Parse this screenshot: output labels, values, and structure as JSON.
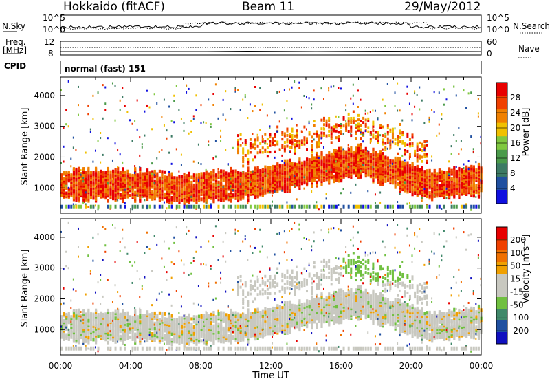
{
  "header": {
    "station": "Hokkaido (fitACF)",
    "beam": "Beam 11",
    "date": "29/May/2012"
  },
  "top_panels": {
    "nsky_label": "N.Sky",
    "nsky_ticks": [
      "10^5",
      "10^0"
    ],
    "nsearch_label": "N.Search",
    "nsearch_ticks": [
      "10^5",
      "10^0"
    ],
    "freq_label": "Freq.",
    "freq_unit": "[MHz]",
    "freq_ticks": [
      "12",
      "8"
    ],
    "nave_label": "Nave",
    "nave_ticks": [
      "60",
      "0"
    ],
    "cpid_label": "CPID",
    "cpid_value": "normal (fast) 151"
  },
  "colors": {
    "power_scale": [
      "#1010e0",
      "#2050a0",
      "#3c7a64",
      "#4a9a4a",
      "#80c840",
      "#f0c000",
      "#f08000",
      "#f04000",
      "#e80000"
    ],
    "velocity_scale": [
      "#1010c0",
      "#2050a0",
      "#40886a",
      "#70c040",
      "#c8c8c0",
      "#c8c8c0",
      "#f0a000",
      "#f07000",
      "#f04000",
      "#e80000"
    ]
  },
  "chart_data": [
    {
      "type": "heatmap",
      "name": "power",
      "ylabel": "Slant Range [km]",
      "yticks": [
        "4000",
        "3000",
        "2000",
        "1000"
      ],
      "ylim": [
        180,
        4600
      ],
      "xlim": [
        0,
        24
      ],
      "colorbar_label": "Power [dB]",
      "colorbar_ticks": [
        "28",
        "24",
        "20",
        "16",
        "12",
        "8",
        "4"
      ],
      "colorbar_range": [
        0,
        32
      ]
    },
    {
      "type": "heatmap",
      "name": "velocity",
      "ylabel": "Slant Range [km]",
      "yticks": [
        "4000",
        "3000",
        "2000",
        "1000"
      ],
      "ylim": [
        180,
        4600
      ],
      "xlim": [
        0,
        24
      ],
      "colorbar_label": "Velocity [m s⁻¹]",
      "colorbar_ticks": [
        "200",
        "100",
        "50",
        "15",
        "-15",
        "-50",
        "-100",
        "-200"
      ]
    }
  ],
  "xaxis": {
    "ticks": [
      "00:00",
      "04:00",
      "08:00",
      "12:00",
      "16:00",
      "20:00",
      "00:00"
    ],
    "label": "Time UT"
  }
}
